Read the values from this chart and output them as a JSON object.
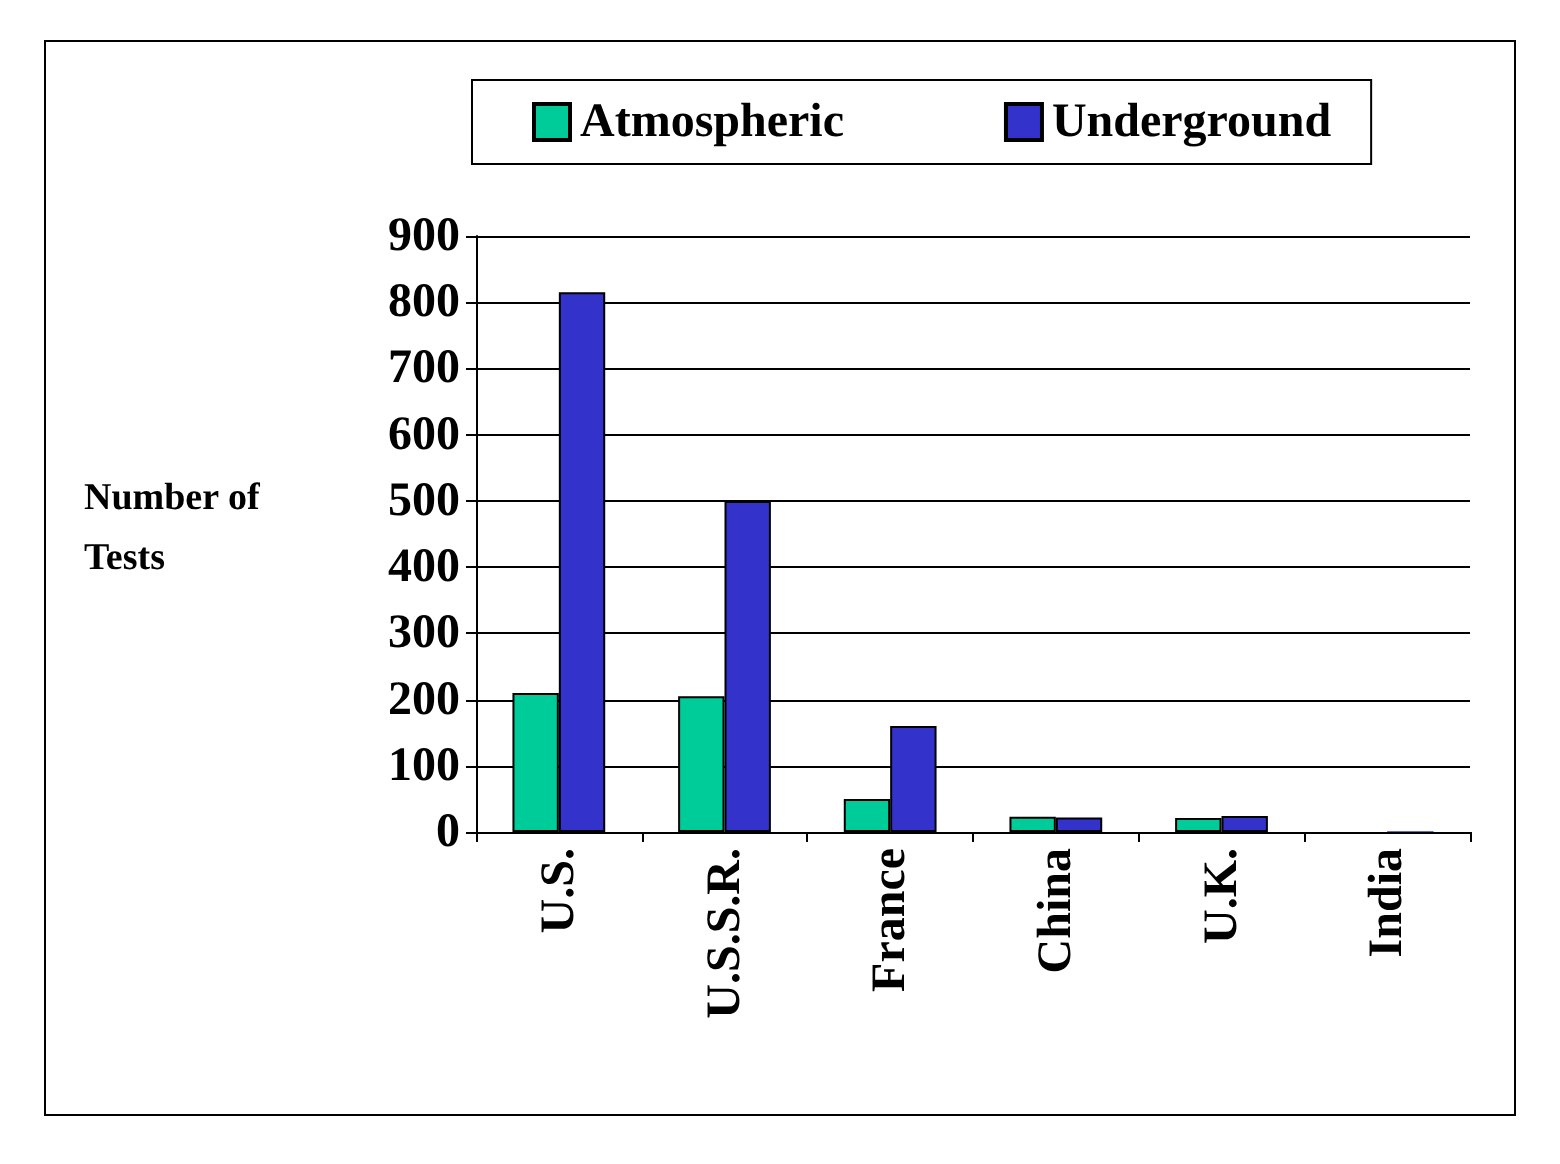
{
  "chart_data": {
    "type": "bar",
    "ylabel": "Number of Tests",
    "categories": [
      "U.S.",
      "U.S.S.R.",
      "France",
      "China",
      "U.K.",
      "India"
    ],
    "series": [
      {
        "name": "Atmospheric",
        "color": "#00cc99",
        "values": [
          210,
          205,
          50,
          23,
          21,
          0
        ]
      },
      {
        "name": "Underground",
        "color": "#3333cc",
        "values": [
          815,
          500,
          160,
          22,
          24,
          1
        ]
      }
    ],
    "ylim": [
      0,
      900
    ],
    "yticks": [
      0,
      100,
      200,
      300,
      400,
      500,
      600,
      700,
      800,
      900
    ],
    "grid": "y",
    "legend": "top"
  }
}
